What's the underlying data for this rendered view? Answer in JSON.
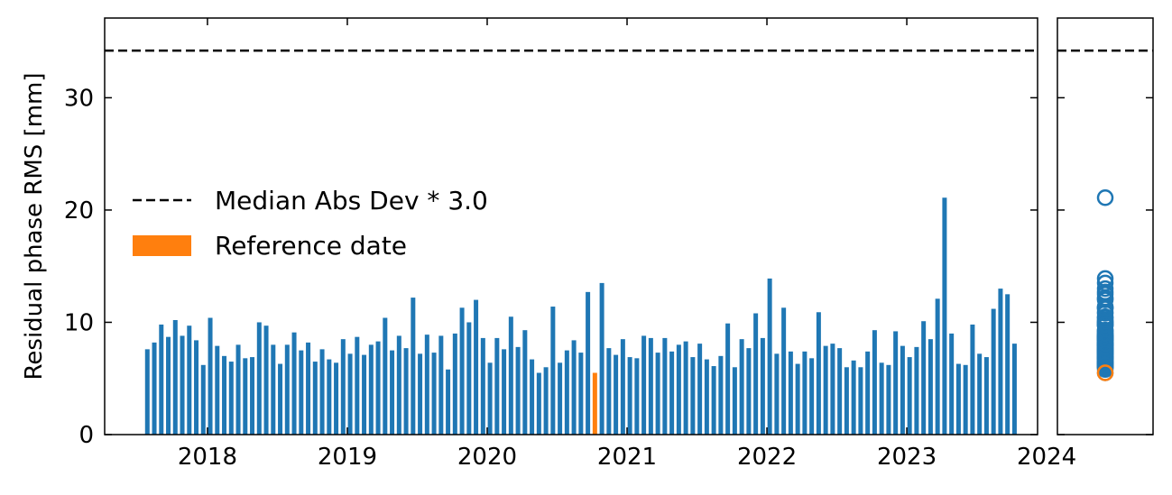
{
  "chart_data": {
    "type": "bar",
    "ylabel": "Residual phase RMS [mm]",
    "xlim": [
      2017.265,
      2023.935
    ],
    "xticks": [
      2018,
      2019,
      2020,
      2021,
      2022,
      2023,
      2024
    ],
    "ylim": [
      0,
      37.1
    ],
    "yticks": [
      0,
      10,
      20,
      30
    ],
    "threshold": {
      "name": "Median Abs Dev * 3.0",
      "value": 34.2
    },
    "series": [
      {
        "color": "#1f77b4",
        "x": [
          2017.57,
          2017.62,
          2017.67,
          2017.72,
          2017.77,
          2017.82,
          2017.87,
          2017.92,
          2017.97,
          2018.02,
          2018.07,
          2018.12,
          2018.17,
          2018.22,
          2018.27,
          2018.32,
          2018.37,
          2018.42,
          2018.47,
          2018.52,
          2018.57,
          2018.62,
          2018.67,
          2018.72,
          2018.77,
          2018.82,
          2018.87,
          2018.92,
          2018.97,
          2019.02,
          2019.07,
          2019.12,
          2019.17,
          2019.22,
          2019.27,
          2019.32,
          2019.37,
          2019.42,
          2019.47,
          2019.52,
          2019.57,
          2019.62,
          2019.67,
          2019.72,
          2019.77,
          2019.82,
          2019.87,
          2019.92,
          2019.97,
          2020.02,
          2020.07,
          2020.12,
          2020.17,
          2020.22,
          2020.27,
          2020.32,
          2020.37,
          2020.42,
          2020.47,
          2020.52,
          2020.57,
          2020.62,
          2020.67,
          2020.72,
          2020.82,
          2020.87,
          2020.92,
          2020.97,
          2021.02,
          2021.07,
          2021.12,
          2021.17,
          2021.22,
          2021.27,
          2021.32,
          2021.37,
          2021.42,
          2021.47,
          2021.52,
          2021.57,
          2021.62,
          2021.67,
          2021.72,
          2021.77,
          2021.82,
          2021.87,
          2021.92,
          2021.97,
          2022.02,
          2022.07,
          2022.12,
          2022.17,
          2022.22,
          2022.27,
          2022.32,
          2022.37,
          2022.42,
          2022.47,
          2022.52,
          2022.57,
          2022.62,
          2022.67,
          2022.72,
          2022.77,
          2022.82,
          2022.87,
          2022.92,
          2022.97,
          2023.02,
          2023.07,
          2023.12,
          2023.17,
          2023.22,
          2023.27,
          2023.32,
          2023.37,
          2023.42,
          2023.47,
          2023.52,
          2023.57,
          2023.62,
          2023.67,
          2023.72,
          2023.77
        ],
        "values": [
          7.6,
          8.2,
          9.8,
          8.7,
          10.2,
          8.8,
          9.7,
          8.4,
          6.2,
          10.4,
          7.9,
          7.0,
          6.5,
          8.0,
          6.8,
          6.9,
          10.0,
          9.7,
          8.0,
          6.3,
          8.0,
          9.1,
          7.5,
          8.2,
          6.5,
          7.6,
          6.7,
          6.4,
          8.5,
          7.2,
          8.7,
          7.1,
          8.0,
          8.3,
          10.4,
          7.5,
          8.8,
          7.7,
          12.2,
          7.2,
          8.9,
          7.3,
          8.8,
          5.8,
          9.0,
          11.3,
          10.0,
          12.0,
          8.6,
          6.4,
          8.6,
          7.6,
          10.5,
          7.8,
          9.3,
          6.7,
          5.5,
          6.0,
          11.4,
          6.4,
          7.5,
          8.4,
          7.3,
          12.7,
          13.5,
          7.7,
          7.1,
          8.5,
          6.9,
          6.8,
          8.8,
          8.6,
          7.3,
          8.6,
          7.4,
          8.0,
          8.3,
          6.9,
          8.1,
          6.7,
          6.1,
          7.0,
          9.9,
          6.0,
          8.5,
          7.7,
          10.8,
          8.6,
          13.9,
          7.2,
          11.3,
          7.4,
          6.3,
          7.4,
          6.8,
          10.9,
          7.9,
          8.1,
          7.7,
          6.0,
          6.6,
          6.0,
          7.4,
          9.3,
          6.4,
          6.2,
          9.2,
          7.9,
          6.9,
          7.8,
          10.1,
          8.5,
          12.1,
          21.1,
          9.0,
          6.3,
          6.2,
          9.8,
          7.2,
          6.9,
          11.2,
          13.0,
          12.5,
          8.1
        ]
      },
      {
        "name": "Reference date",
        "color": "#ff7f0e",
        "x": [
          2020.77
        ],
        "values": [
          5.5
        ]
      }
    ]
  }
}
